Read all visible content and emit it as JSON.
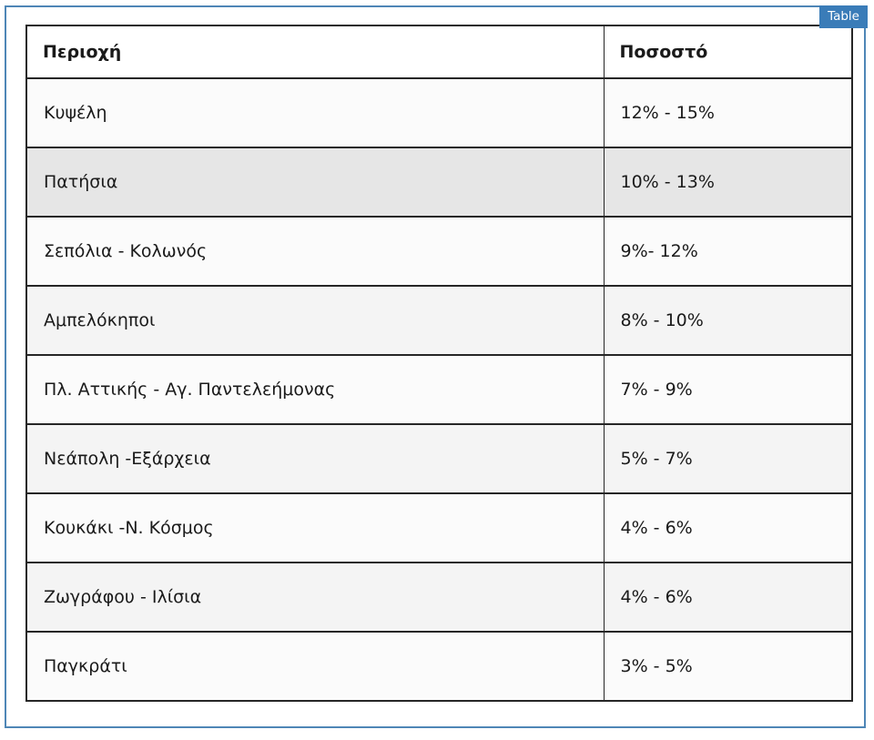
{
  "annotation": {
    "badge_label": "Table",
    "badge_color": "#3a7cb8",
    "frame_color": "#4e86b6"
  },
  "table": {
    "headers": {
      "region": "Περιοχή",
      "percent": "Ποσοστό"
    },
    "rows": [
      {
        "region": "Κυψέλη",
        "percent": "12% - 15%"
      },
      {
        "region": "Πατήσια",
        "percent": "10% - 13%"
      },
      {
        "region": "Σεπόλια - Κολωνός",
        "percent": "9%- 12%"
      },
      {
        "region": "Αμπελόκηποι",
        "percent": "8% - 10%"
      },
      {
        "region": "Πλ. Αττικής - Αγ. Παντελεήμονας",
        "percent": "7% - 9%"
      },
      {
        "region": "Νεάπολη -Εξάρχεια",
        "percent": "5% - 7%"
      },
      {
        "region": "Κουκάκι -Ν. Κόσμος",
        "percent": "4% - 6%"
      },
      {
        "region": "Ζωγράφου - Ιλίσια",
        "percent": "4% - 6%"
      },
      {
        "region": "Παγκράτι",
        "percent": "3% - 5%"
      }
    ],
    "row_colors": {
      "odd": "#fbfbfb",
      "even": "#f4f4f4",
      "highlight": "#e6e6e6"
    }
  }
}
